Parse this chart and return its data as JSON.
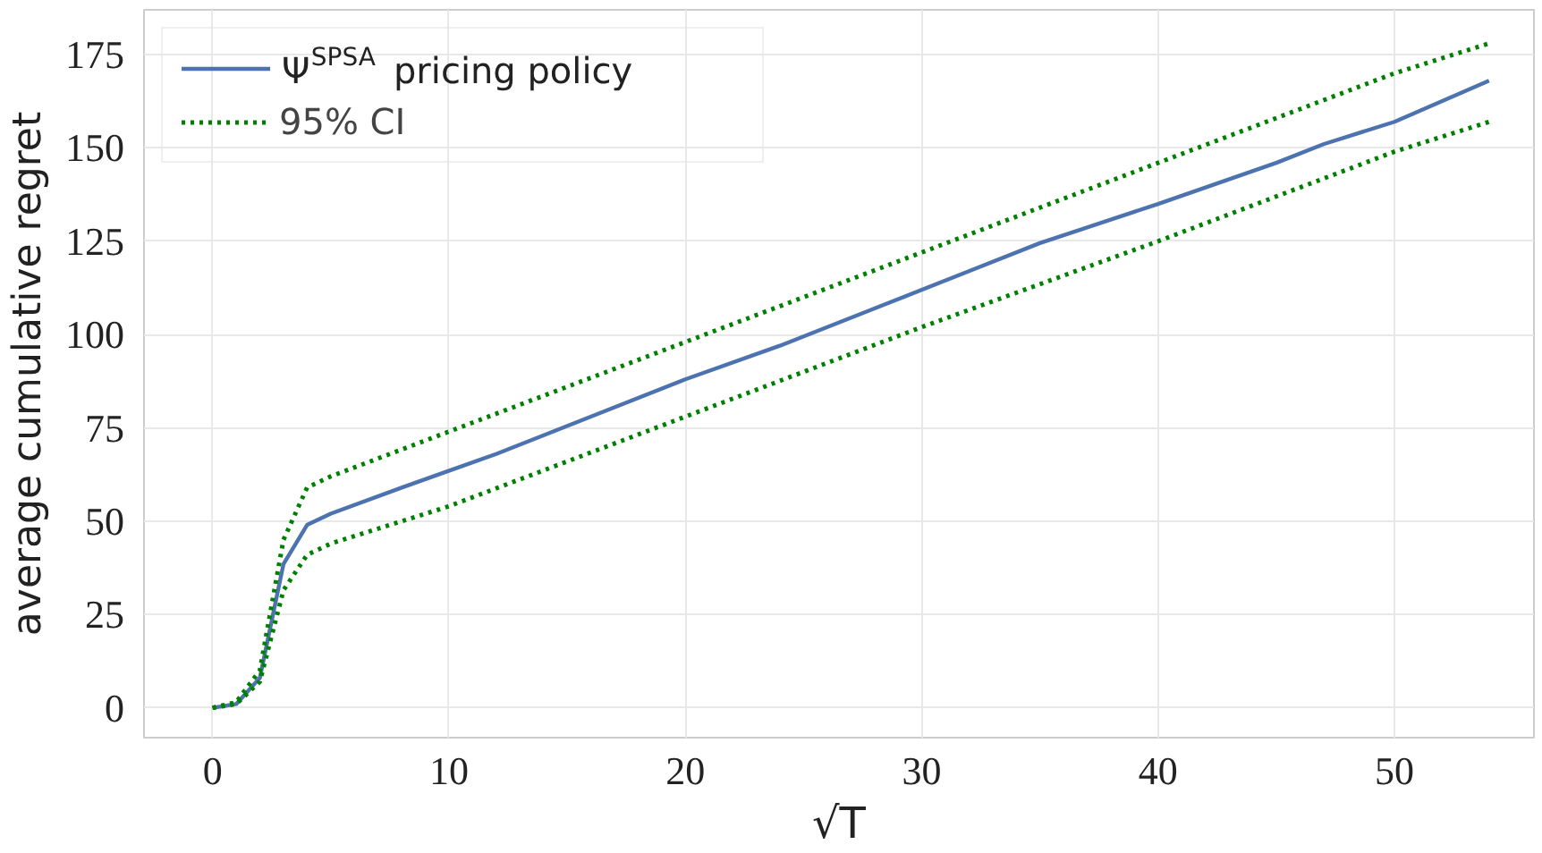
{
  "chart_data": {
    "type": "line",
    "xlabel": "√T",
    "ylabel": "average cumulative regret",
    "xlim": [
      -2.9,
      55.9
    ],
    "ylim": [
      -8,
      187
    ],
    "xticks": [
      0,
      10,
      20,
      30,
      40,
      50
    ],
    "yticks": [
      0,
      25,
      50,
      75,
      100,
      125,
      150,
      175
    ],
    "grid": true,
    "legend": "top left",
    "series": [
      {
        "name": "Ψ$^{SPSA}$ pricing policy",
        "color": "#4c72b0",
        "line_style": "solid",
        "x": [
          0,
          1,
          2,
          3,
          4,
          5,
          8,
          12,
          16,
          20,
          24,
          28,
          32,
          35,
          40,
          45,
          47,
          50,
          54
        ],
        "values": [
          0,
          1,
          8,
          38.5,
          49,
          52,
          59,
          68,
          78,
          88,
          97,
          107,
          117,
          124.5,
          135,
          146,
          151,
          157,
          168
        ]
      },
      {
        "name": "95% CI",
        "color": "#008000",
        "line_style": "dotted",
        "x": [
          0,
          1,
          2,
          3,
          4,
          5,
          10,
          20,
          30,
          40,
          50,
          54
        ],
        "values": [
          0,
          1.5,
          10,
          45,
          59,
          62,
          74,
          98,
          122,
          146,
          170,
          178
        ]
      },
      {
        "color": "#008000",
        "line_style": "dotted",
        "x": [
          0,
          1,
          2,
          3,
          4,
          5,
          10,
          20,
          30,
          40,
          50,
          54
        ],
        "values": [
          0,
          1,
          7,
          31.5,
          41,
          44,
          54,
          78,
          102,
          125,
          149,
          157
        ]
      }
    ]
  }
}
